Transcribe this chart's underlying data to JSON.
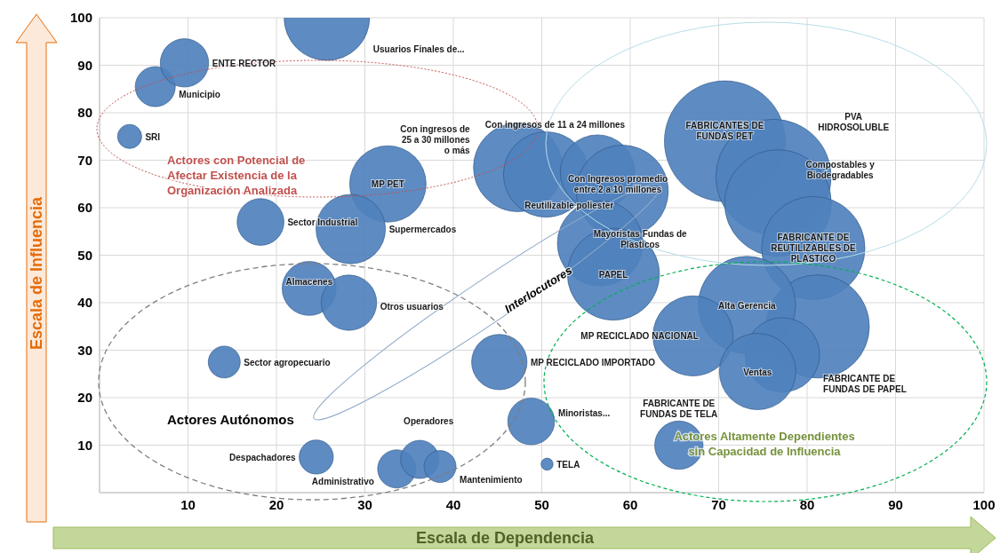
{
  "chart_data": {
    "type": "bubble",
    "xlabel": "Escala de Dependencia",
    "ylabel": "Escala de Influencia",
    "xlim": [
      0,
      100
    ],
    "xticks": [
      10,
      20,
      30,
      40,
      50,
      60,
      70,
      80,
      90,
      100
    ],
    "ylim": [
      0,
      100
    ],
    "yticks": [
      10,
      20,
      30,
      40,
      50,
      60,
      70,
      80,
      90,
      100
    ],
    "grid": true,
    "annotations": [
      "Actores con Potencial de Afectar Existencia de la Organización Analizada",
      "Interlocutores",
      "Actores Autónomos",
      "Actores Altamente Dependientes sin Capacidad de Influencia"
    ],
    "series": [
      {
        "name": "SRI",
        "color": "#4f81bd",
        "x": [
          3.4
        ],
        "values": [
          75
        ],
        "sizes": [
          0.04
        ]
      },
      {
        "name": "Municipio",
        "color": "#4f81bd",
        "x": [
          6.3
        ],
        "values": [
          85.5
        ],
        "sizes": [
          0.11
        ]
      },
      {
        "name": "ENTE RECTOR",
        "color": "#4f81bd",
        "x": [
          9.6
        ],
        "values": [
          90.5
        ],
        "sizes": [
          0.16
        ]
      },
      {
        "name": "Usuarios Finales de...",
        "color": "#4f81bd",
        "x": [
          25.7
        ],
        "values": [
          100
        ],
        "sizes": [
          0.5
        ]
      },
      {
        "name": "Sector Industrial",
        "color": "#4f81bd",
        "x": [
          18.2
        ],
        "values": [
          57
        ],
        "sizes": [
          0.15
        ]
      },
      {
        "name": "MP PET",
        "color": "#4f81bd",
        "x": [
          32.6
        ],
        "values": [
          65
        ],
        "sizes": [
          0.4
        ]
      },
      {
        "name": "Supermercados",
        "color": "#4f81bd",
        "x": [
          28.4
        ],
        "values": [
          55.5
        ],
        "sizes": [
          0.33
        ]
      },
      {
        "name": "Almacenes",
        "color": "#4f81bd",
        "x": [
          23.7
        ],
        "values": [
          43
        ],
        "sizes": [
          0.2
        ]
      },
      {
        "name": "Otros usuarios",
        "color": "#4f81bd",
        "x": [
          28.2
        ],
        "values": [
          40
        ],
        "sizes": [
          0.21
        ]
      },
      {
        "name": "Sector agropecuario",
        "color": "#4f81bd",
        "x": [
          14.1
        ],
        "values": [
          27.5
        ],
        "sizes": [
          0.07
        ]
      },
      {
        "name": "Despachadores",
        "color": "#4f81bd",
        "x": [
          24.5
        ],
        "values": [
          7.5
        ],
        "sizes": [
          0.08
        ]
      },
      {
        "name": "Administrativo",
        "color": "#4f81bd",
        "x": [
          33.6
        ],
        "values": [
          5
        ],
        "sizes": [
          0.1
        ]
      },
      {
        "name": "Operadores",
        "color": "#4f81bd",
        "x": [
          36.2
        ],
        "values": [
          7
        ],
        "sizes": [
          0.1
        ]
      },
      {
        "name": "Mantenimiento",
        "color": "#4f81bd",
        "x": [
          38.5
        ],
        "values": [
          5.5
        ],
        "sizes": [
          0.07
        ]
      },
      {
        "name": "MP RECICLADO IMPORTADO",
        "color": "#4f81bd",
        "x": [
          45.2
        ],
        "values": [
          27.5
        ],
        "sizes": [
          0.21
        ]
      },
      {
        "name": "Minoristas...",
        "color": "#4f81bd",
        "x": [
          48.8
        ],
        "values": [
          15
        ],
        "sizes": [
          0.15
        ]
      },
      {
        "name": "TELA",
        "color": "#4f81bd",
        "x": [
          50.6
        ],
        "values": [
          6
        ],
        "sizes": [
          0.01
        ]
      },
      {
        "name": "Con ingresos de 25 a 30 millones o más",
        "color": "#4f81bd",
        "x": [
          47.3
        ],
        "values": [
          68.5
        ],
        "sizes": [
          0.54
        ]
      },
      {
        "name": "Con ingresos de 11 a 24 millones",
        "color": "#4f81bd",
        "x": [
          50.5
        ],
        "values": [
          67
        ],
        "sizes": [
          0.5
        ]
      },
      {
        "name": "Reutilizable poliester",
        "color": "#4f81bd",
        "x": [
          56.3
        ],
        "values": [
          67.5
        ],
        "sizes": [
          0.38
        ]
      },
      {
        "name": "Con  Ingresos promedio entre 2 a 10 millones",
        "color": "#4f81bd",
        "x": [
          59.1
        ],
        "values": [
          63.5
        ],
        "sizes": [
          0.58
        ]
      },
      {
        "name": "Mayoristas Fundas de Plasticos",
        "color": "#4f81bd",
        "x": [
          56.6
        ],
        "values": [
          52.5
        ],
        "sizes": [
          0.5
        ]
      },
      {
        "name": "PAPEL",
        "color": "#4f81bd",
        "x": [
          58.1
        ],
        "values": [
          46
        ],
        "sizes": [
          0.58
        ]
      },
      {
        "name": "FABRICANTES DE FUNDAS PET",
        "color": "#4f81bd",
        "x": [
          70.7
        ],
        "values": [
          74
        ],
        "sizes": [
          1
        ]
      },
      {
        "name": "PVA HIDROSOLUBLE",
        "color": "#4f81bd",
        "x": [
          76.2
        ],
        "values": [
          66.5
        ],
        "sizes": [
          0.91
        ]
      },
      {
        "name": "Compostables y Biodegradables",
        "color": "#4f81bd",
        "x": [
          76.7
        ],
        "values": [
          61
        ],
        "sizes": [
          0.78
        ]
      },
      {
        "name": "FABRICANTE DE REUTILIZABLES DE PLASTICO",
        "color": "#4f81bd",
        "x": [
          80.7
        ],
        "values": [
          51.5
        ],
        "sizes": [
          0.73
        ]
      },
      {
        "color": "#4f81bd",
        "x": [
          81.2
        ],
        "values": [
          35
        ],
        "sizes": [
          0.73
        ]
      },
      {
        "name": "Alta Gerencia",
        "color": "#4f81bd",
        "x": [
          73.2
        ],
        "values": [
          39.5
        ],
        "sizes": [
          0.65
        ]
      },
      {
        "name": "MP RECICLADO NACIONAL",
        "color": "#4f81bd",
        "x": [
          67.1
        ],
        "values": [
          33
        ],
        "sizes": [
          0.44
        ]
      },
      {
        "name": "FABRICANTE DE FUNDAS DE PAPEL",
        "color": "#4f81bd",
        "x": [
          77.2
        ],
        "values": [
          29
        ],
        "sizes": [
          0.38
        ]
      },
      {
        "name": "Ventas",
        "color": "#4f81bd",
        "x": [
          74.4
        ],
        "values": [
          25.5
        ],
        "sizes": [
          0.4
        ]
      },
      {
        "name": "FABRICANTE DE FUNDAS DE TELA",
        "color": "#4f81bd",
        "x": [
          65.5
        ],
        "values": [
          10
        ],
        "sizes": [
          0.16
        ]
      }
    ]
  }
}
